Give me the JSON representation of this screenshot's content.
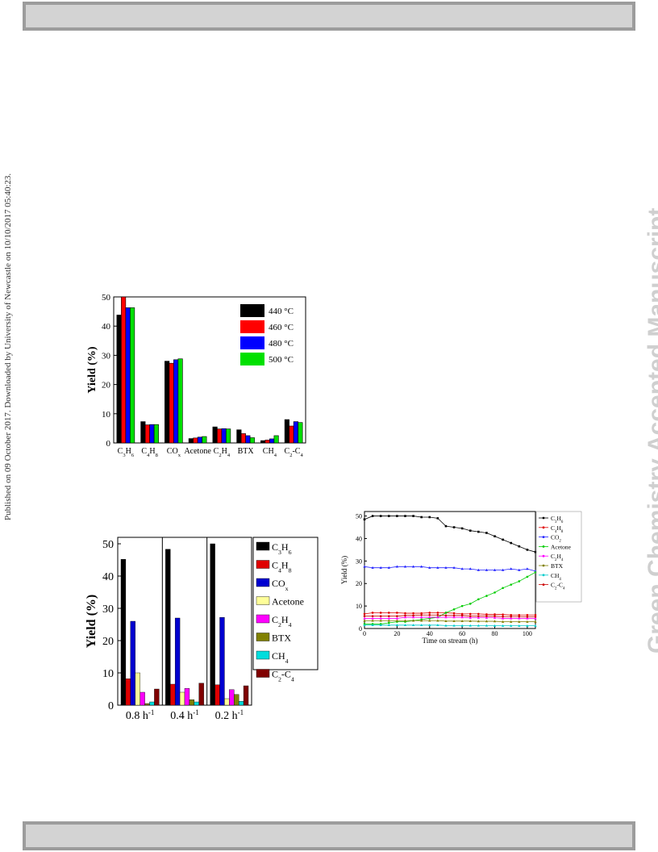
{
  "page": {
    "side_note": "Published on 09 October 2017. Downloaded by University of Newcastle on 10/10/2017 05:40:23.",
    "watermark": "Green Chemistry Accepted Manuscript"
  },
  "chart_data": [
    {
      "type": "bar",
      "ylabel": "Yield (%)",
      "ylim": [
        0,
        50
      ],
      "yticks": [
        0,
        10,
        20,
        30,
        40,
        50
      ],
      "legend_position": "top-right",
      "categories": [
        {
          "base": "C",
          "sub": "3",
          "b2": "H",
          "sub2": "6"
        },
        {
          "base": "C",
          "sub": "4",
          "b2": "H",
          "sub2": "8"
        },
        {
          "base": "CO",
          "sub": "x",
          "b2": "",
          "sub2": ""
        },
        {
          "base": "Acetone",
          "sub": "",
          "b2": "",
          "sub2": ""
        },
        {
          "base": "C",
          "sub": "2",
          "b2": "H",
          "sub2": "4"
        },
        {
          "base": "BTX",
          "sub": "",
          "b2": "",
          "sub2": ""
        },
        {
          "base": "CH",
          "sub": "4",
          "b2": "",
          "sub2": ""
        },
        {
          "base": "C",
          "sub": "2",
          "b2": "-C",
          "sub2": "4"
        }
      ],
      "series": [
        {
          "name": "440 °C",
          "color": "#000000",
          "values": [
            43.8,
            7.3,
            28.0,
            1.5,
            5.5,
            4.5,
            0.8,
            8.0
          ]
        },
        {
          "name": "460 °C",
          "color": "#ff0000",
          "values": [
            50.0,
            6.2,
            27.3,
            1.7,
            4.8,
            3.2,
            1.0,
            5.8
          ]
        },
        {
          "name": "480 °C",
          "color": "#0000ff",
          "values": [
            46.3,
            6.3,
            28.5,
            2.0,
            4.9,
            2.5,
            1.4,
            7.3
          ]
        },
        {
          "name": "500 °C",
          "color": "#00e000",
          "values": [
            46.3,
            6.3,
            28.8,
            2.2,
            4.8,
            1.8,
            2.5,
            7.0
          ]
        }
      ]
    },
    {
      "type": "bar",
      "ylabel": "Yield (%)",
      "ylim": [
        0,
        52
      ],
      "yticks": [
        0,
        10,
        20,
        30,
        40,
        50
      ],
      "legend_position": "right",
      "categories": [
        "0.8 h",
        "0.4 h",
        "0.2 h"
      ],
      "category_superscript": "-1",
      "series": [
        {
          "name": {
            "base": "C",
            "sub": "3",
            "b2": "H",
            "sub2": "6"
          },
          "color": "#000000",
          "values": [
            45.2,
            48.3,
            50.0
          ]
        },
        {
          "name": {
            "base": "C",
            "sub": "4",
            "b2": "H",
            "sub2": "8"
          },
          "color": "#e00000",
          "values": [
            8.2,
            6.5,
            6.3
          ]
        },
        {
          "name": {
            "base": "CO",
            "sub": "x",
            "b2": "",
            "sub2": ""
          },
          "color": "#0000d0",
          "values": [
            26.0,
            27.0,
            27.2
          ]
        },
        {
          "name": {
            "base": "Acetone",
            "sub": "",
            "b2": "",
            "sub2": ""
          },
          "color": "#ffff99",
          "values": [
            10.0,
            4.0,
            2.0
          ]
        },
        {
          "name": {
            "base": "C",
            "sub": "2",
            "b2": "H",
            "sub2": "4"
          },
          "color": "#ff00ff",
          "values": [
            4.0,
            5.2,
            4.8
          ]
        },
        {
          "name": {
            "base": "BTX",
            "sub": "",
            "b2": "",
            "sub2": ""
          },
          "color": "#808000",
          "values": [
            0.5,
            1.7,
            3.3
          ]
        },
        {
          "name": {
            "base": "CH",
            "sub": "4",
            "b2": "",
            "sub2": ""
          },
          "color": "#00dddd",
          "values": [
            1.0,
            1.0,
            1.2
          ]
        },
        {
          "name": {
            "base": "C",
            "sub": "2",
            "b2": "-C",
            "sub2": "4"
          },
          "color": "#800000",
          "values": [
            5.0,
            6.8,
            6.0
          ]
        }
      ]
    },
    {
      "type": "line",
      "xlabel": "Time on stream (h)",
      "ylabel": "Yield (%)",
      "xlim": [
        0,
        105
      ],
      "ylim": [
        0,
        52
      ],
      "xticks": [
        0,
        20,
        40,
        60,
        80,
        100
      ],
      "yticks": [
        0,
        10,
        20,
        30,
        40,
        50
      ],
      "legend_position": "right",
      "x": [
        0,
        5,
        10,
        15,
        20,
        25,
        30,
        35,
        40,
        45,
        50,
        55,
        60,
        65,
        70,
        75,
        80,
        85,
        90,
        95,
        100,
        105
      ],
      "series": [
        {
          "name": {
            "base": "C",
            "sub": "3",
            "b2": "H",
            "sub2": "6"
          },
          "color": "#000000",
          "marker": "square",
          "values": [
            48.5,
            50,
            50,
            50,
            50,
            50,
            50,
            49.5,
            49.5,
            49,
            45.5,
            45,
            44.5,
            43.5,
            43,
            42.5,
            41,
            39.5,
            38,
            36.5,
            35,
            34
          ]
        },
        {
          "name": {
            "base": "C",
            "sub": "4",
            "b2": "H",
            "sub2": "8"
          },
          "color": "#e00000",
          "marker": "circle",
          "values": [
            6.5,
            7,
            7,
            7,
            7,
            6.8,
            6.8,
            6.8,
            7,
            7,
            7,
            6.8,
            6.5,
            6.5,
            6.5,
            6.3,
            6.3,
            6.2,
            6,
            6,
            6,
            6
          ]
        },
        {
          "name": {
            "base": "CO",
            "sub": "2",
            "b2": "",
            "sub2": ""
          },
          "color": "#2020ff",
          "marker": "triangle",
          "values": [
            27.5,
            27,
            27,
            27,
            27.5,
            27.5,
            27.5,
            27.5,
            27,
            27,
            27,
            27,
            26.5,
            26.5,
            26,
            26,
            26,
            26,
            26.5,
            26,
            26.5,
            25.5
          ]
        },
        {
          "name": {
            "base": "Acetone",
            "sub": "",
            "b2": "",
            "sub2": ""
          },
          "color": "#00cc00",
          "marker": "circle",
          "values": [
            2,
            2,
            2,
            2.5,
            3,
            3,
            3.5,
            4,
            4.5,
            5,
            7,
            8.5,
            10,
            11,
            13,
            14.5,
            16,
            18,
            19.5,
            21,
            23,
            25
          ]
        },
        {
          "name": {
            "base": "C",
            "sub": "2",
            "b2": "H",
            "sub2": "4"
          },
          "color": "#ff00ff",
          "marker": "triangle",
          "values": [
            4.5,
            4.5,
            4.5,
            4.5,
            4.5,
            5,
            5,
            5,
            5,
            5,
            5,
            5,
            5,
            4.8,
            4.8,
            4.8,
            4.8,
            4.5,
            4.5,
            4.5,
            4.5,
            4.5
          ]
        },
        {
          "name": {
            "base": "BTX",
            "sub": "",
            "b2": "",
            "sub2": ""
          },
          "color": "#808000",
          "marker": "triangle",
          "values": [
            3.5,
            3.5,
            3.5,
            3.5,
            3.5,
            3.5,
            3.5,
            3.5,
            3.5,
            3.5,
            3.3,
            3.3,
            3.3,
            3.3,
            3.2,
            3.2,
            3.2,
            3,
            3,
            3,
            3,
            3
          ]
        },
        {
          "name": {
            "base": "CH",
            "sub": "4",
            "b2": "",
            "sub2": ""
          },
          "color": "#00cccc",
          "marker": "triangle",
          "values": [
            1.5,
            1.5,
            1.5,
            1.5,
            1.5,
            1.5,
            1.5,
            1.5,
            1.5,
            1.5,
            1.3,
            1.3,
            1.3,
            1.3,
            1.3,
            1.3,
            1.2,
            1.2,
            1.2,
            1.2,
            1.2,
            1.2
          ]
        },
        {
          "name": {
            "base": "C",
            "sub": "2",
            "b2": "-C",
            "sub2": "4"
          },
          "color": "#cc0000",
          "marker": "star",
          "values": [
            5.5,
            5.5,
            5.5,
            5.5,
            5.5,
            5.8,
            5.8,
            6,
            6,
            6,
            5.8,
            5.8,
            5.8,
            5.5,
            5.5,
            5.5,
            5.5,
            5.3,
            5.3,
            5.3,
            5.2,
            5.2
          ]
        }
      ]
    }
  ]
}
